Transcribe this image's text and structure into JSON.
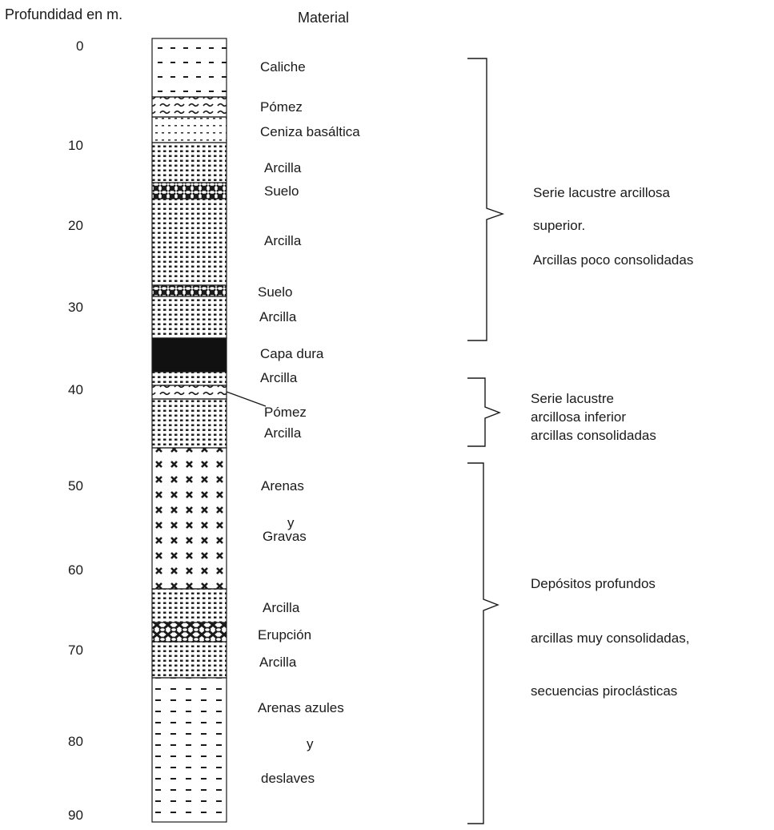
{
  "headers": {
    "depth": "Profundidad en m.",
    "material": "Material"
  },
  "depth_ticks": [
    "0",
    "10",
    "20",
    "30",
    "40",
    "50",
    "60",
    "70",
    "80",
    "90"
  ],
  "layers": [
    {
      "pattern": "dash-sparse"
    },
    {
      "pattern": "wavy"
    },
    {
      "pattern": "dots-light"
    },
    {
      "pattern": "dots"
    },
    {
      "pattern": "cross-hatch"
    },
    {
      "pattern": "dots"
    },
    {
      "pattern": "cross-hatch"
    },
    {
      "pattern": "dots"
    },
    {
      "pattern": "solid-black"
    },
    {
      "pattern": "dots"
    },
    {
      "pattern": "wavy"
    },
    {
      "pattern": "dots"
    },
    {
      "pattern": "x-marks"
    },
    {
      "pattern": "dots"
    },
    {
      "pattern": "cross-hatch-dense"
    },
    {
      "pattern": "dots"
    },
    {
      "pattern": "dash-lines"
    }
  ],
  "labels": {
    "caliche": "Caliche",
    "pomez_1": "Pómez",
    "ceniza": "Ceniza basáltica",
    "arcilla_1": "Arcilla",
    "suelo_1": "Suelo",
    "arcilla_2": "Arcilla",
    "suelo_2": "Suelo",
    "arcilla_3": "Arcilla",
    "capa_dura": "Capa dura",
    "arcilla_4": "Arcilla",
    "pomez_2": "Pómez",
    "arcilla_5": "Arcilla",
    "arenas": "Arenas",
    "y_1": "y",
    "gravas": "Gravas",
    "arcilla_6": "Arcilla",
    "erupcion": "Erupción",
    "arcilla_7": "Arcilla",
    "arenas_azules": "Arenas azules",
    "y_2": "y",
    "deslaves": "deslaves"
  },
  "groups": {
    "upper": [
      "Serie lacustre arcillosa",
      "superior.",
      "Arcillas poco consolidadas"
    ],
    "lower": [
      "Serie lacustre",
      "arcillosa inferior",
      "arcillas consolidadas"
    ],
    "deep": [
      "Depósitos profundos",
      "arcillas muy consolidadas,",
      "secuencias piroclásticas"
    ]
  },
  "colors": {
    "ink": "#1a1a1a",
    "background": "#ffffff"
  }
}
